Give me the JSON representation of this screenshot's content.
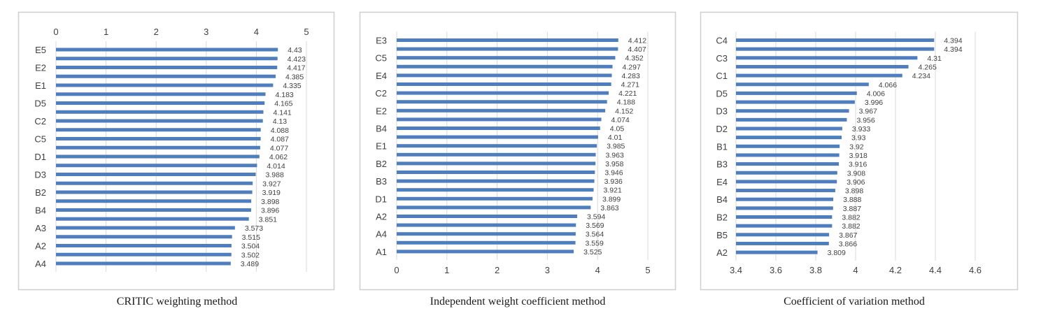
{
  "chart_data": [
    {
      "type": "bar",
      "orientation": "horizontal",
      "caption": "CRITIC weighting method",
      "axis_position": "top",
      "xlim": [
        0,
        5
      ],
      "xticks": [
        "0",
        "1",
        "2",
        "3",
        "4",
        "5"
      ],
      "grid": true,
      "labels": [
        "E5",
        "",
        "E2",
        "",
        "E1",
        "",
        "D5",
        "",
        "C2",
        "",
        "C5",
        "",
        "D1",
        "",
        "D3",
        "",
        "B2",
        "",
        "B4",
        "",
        "A3",
        "",
        "A2",
        "",
        "A4"
      ],
      "values": [
        4.43,
        4.423,
        4.417,
        4.385,
        4.335,
        4.183,
        4.165,
        4.141,
        4.13,
        4.088,
        4.087,
        4.077,
        4.062,
        4.014,
        3.988,
        3.927,
        3.919,
        3.898,
        3.896,
        3.851,
        3.573,
        3.515,
        3.504,
        3.502,
        3.489
      ],
      "value_labels": [
        "4.43",
        "4.423",
        "4.417",
        "4.385",
        "4.335",
        "4.183",
        "4.165",
        "4.141",
        "4.13",
        "4.088",
        "4.087",
        "4.077",
        "4.062",
        "4.014",
        "3.988",
        "3.927",
        "3.919",
        "3.898",
        "3.896",
        "3.851",
        "3.573",
        "3.515",
        "3.504",
        "3.502",
        "3.489"
      ]
    },
    {
      "type": "bar",
      "orientation": "horizontal",
      "caption": "Independent weight coefficient method",
      "axis_position": "bottom",
      "xlim": [
        0,
        5
      ],
      "xticks": [
        "0",
        "1",
        "2",
        "3",
        "4",
        "5"
      ],
      "grid": true,
      "labels": [
        "E3",
        "",
        "C5",
        "",
        "E4",
        "",
        "C2",
        "",
        "E2",
        "",
        "B4",
        "",
        "E1",
        "",
        "B2",
        "",
        "B3",
        "",
        "D1",
        "",
        "A2",
        "",
        "A4",
        "",
        "A1"
      ],
      "values": [
        4.412,
        4.407,
        4.352,
        4.297,
        4.283,
        4.271,
        4.221,
        4.188,
        4.152,
        4.074,
        4.05,
        4.01,
        3.985,
        3.963,
        3.958,
        3.946,
        3.936,
        3.921,
        3.899,
        3.863,
        3.594,
        3.569,
        3.564,
        3.559,
        3.525
      ],
      "value_labels": [
        "4.412",
        "4.407",
        "4.352",
        "4.297",
        "4.283",
        "4.271",
        "4.221",
        "4.188",
        "4.152",
        "4.074",
        "4.05",
        "4.01",
        "3.985",
        "3.963",
        "3.958",
        "3.946",
        "3.936",
        "3.921",
        "3.899",
        "3.863",
        "3.594",
        "3.569",
        "3.564",
        "3.559",
        "3.525"
      ]
    },
    {
      "type": "bar",
      "orientation": "horizontal",
      "caption": "Coefficient of variation method",
      "axis_position": "bottom",
      "xlim": [
        3.4,
        4.6
      ],
      "xticks": [
        "3.4",
        "3.6",
        "3.8",
        "4",
        "4.2",
        "4.4",
        "4.6"
      ],
      "grid": true,
      "labels": [
        "C4",
        "",
        "C3",
        "",
        "C1",
        "",
        "D5",
        "",
        "D3",
        "",
        "D2",
        "",
        "B1",
        "",
        "B3",
        "",
        "E4",
        "",
        "B4",
        "",
        "B2",
        "",
        "B5",
        "",
        "A2"
      ],
      "values": [
        4.394,
        4.394,
        4.31,
        4.265,
        4.234,
        4.066,
        4.006,
        3.996,
        3.967,
        3.956,
        3.933,
        3.93,
        3.92,
        3.918,
        3.916,
        3.908,
        3.906,
        3.898,
        3.888,
        3.887,
        3.882,
        3.882,
        3.867,
        3.866,
        3.809
      ],
      "value_labels": [
        "4.394",
        "4.394",
        "4.31",
        "4.265",
        "4.234",
        "4.066",
        "4.006",
        "3.996",
        "3.967",
        "3.956",
        "3.933",
        "3.93",
        "3.92",
        "3.918",
        "3.916",
        "3.908",
        "3.906",
        "3.898",
        "3.888",
        "3.887",
        "3.882",
        "3.882",
        "3.867",
        "3.866",
        "3.809"
      ]
    }
  ],
  "colors": {
    "bar": "#4f7ebe",
    "grid": "#d9d9d9",
    "frame": "#cfcfcf",
    "text": "#404040",
    "caption": "#1a1a1a"
  }
}
